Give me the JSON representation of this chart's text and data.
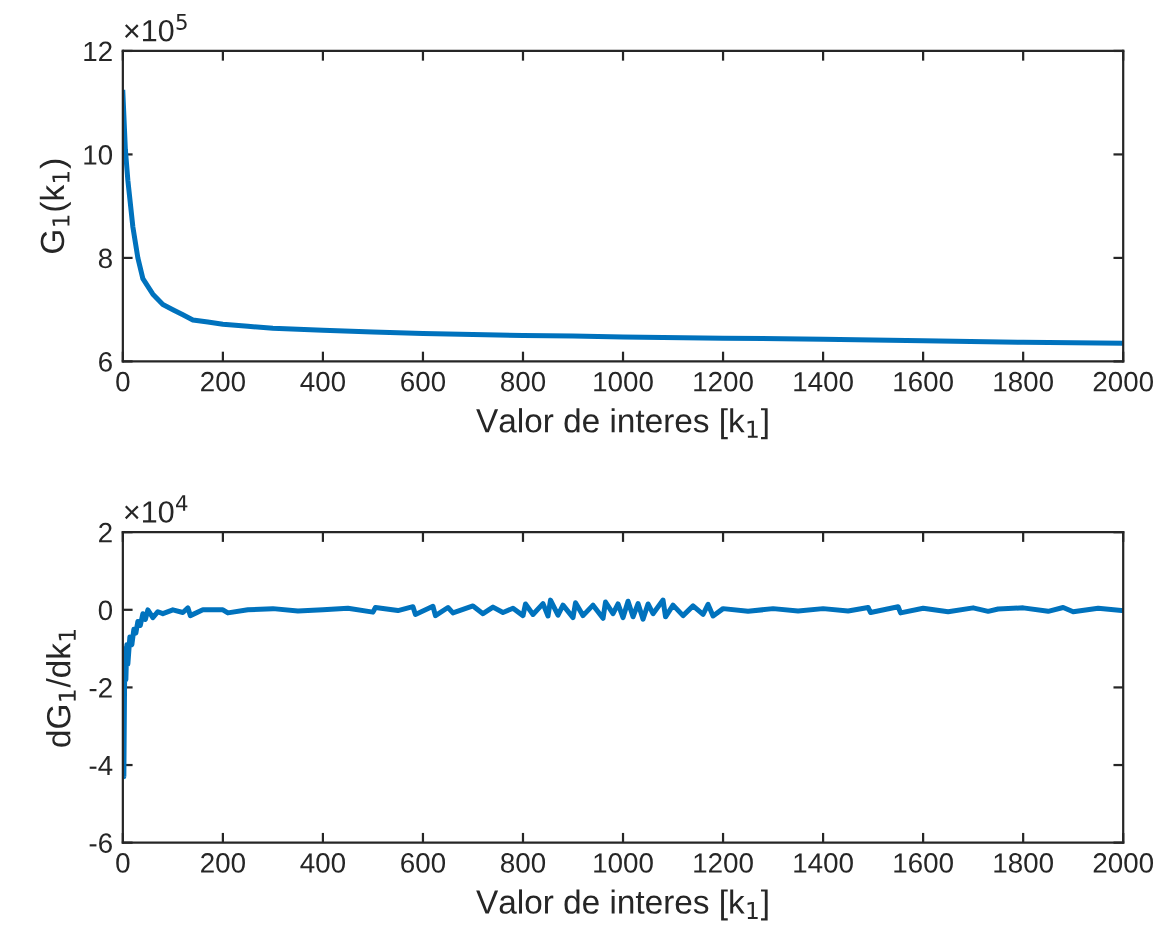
{
  "chart_data": [
    {
      "type": "line",
      "xlabel": "Valor de interes [k$_{1}$]",
      "ylabel": "G$_{1}$(k$_{1}$)",
      "annotations": [
        "×10$^{5}$"
      ],
      "xlim": [
        0,
        2000
      ],
      "xticks": [
        0,
        200,
        400,
        600,
        800,
        1000,
        1200,
        1400,
        1600,
        1800,
        2000
      ],
      "ylim": [
        6,
        12
      ],
      "yticks": [
        6,
        8,
        10,
        12
      ],
      "grid": false,
      "series": [
        {
          "color": "#0072bd",
          "x": [
            0,
            5,
            10,
            20,
            30,
            40,
            50,
            60,
            80,
            100,
            120,
            140,
            170,
            200,
            250,
            300,
            400,
            500,
            600,
            700,
            800,
            900,
            1000,
            1200,
            1400,
            1600,
            1800,
            2000
          ],
          "values": [
            11.2,
            10.1,
            9.5,
            8.6,
            8.0,
            7.6,
            7.45,
            7.3,
            7.1,
            7.0,
            6.9,
            6.8,
            6.76,
            6.72,
            6.68,
            6.64,
            6.6,
            6.57,
            6.54,
            6.52,
            6.5,
            6.49,
            6.47,
            6.45,
            6.43,
            6.4,
            6.37,
            6.35
          ]
        }
      ]
    },
    {
      "type": "line",
      "xlabel": "Valor de interes [k$_{1}$]",
      "ylabel": "dG$_{1}$/dk$_{1}$",
      "annotations": [
        "×10$^{4}$"
      ],
      "xlim": [
        0,
        2000
      ],
      "xticks": [
        0,
        200,
        400,
        600,
        800,
        1000,
        1200,
        1400,
        1600,
        1800,
        2000
      ],
      "ylim": [
        -6,
        2
      ],
      "yticks": [
        -6,
        -4,
        -2,
        0,
        2
      ],
      "grid": false,
      "series": [
        {
          "color": "#0072bd",
          "x": [
            0,
            2,
            4,
            6,
            8,
            10,
            14,
            18,
            22,
            26,
            30,
            35,
            40,
            45,
            50,
            60,
            70,
            80,
            100,
            120,
            130,
            135,
            160,
            200,
            210,
            250,
            300,
            350,
            400,
            450,
            500,
            505,
            550,
            580,
            585,
            620,
            625,
            650,
            660,
            700,
            720,
            740,
            760,
            780,
            800,
            805,
            820,
            840,
            850,
            855,
            870,
            880,
            900,
            905,
            920,
            940,
            960,
            965,
            980,
            990,
            1000,
            1010,
            1020,
            1030,
            1040,
            1050,
            1060,
            1080,
            1085,
            1100,
            1120,
            1140,
            1160,
            1170,
            1180,
            1200,
            1250,
            1300,
            1350,
            1400,
            1450,
            1490,
            1495,
            1550,
            1555,
            1600,
            1650,
            1700,
            1730,
            1750,
            1800,
            1850,
            1880,
            1900,
            1950,
            2000
          ],
          "values": [
            -3.5,
            -4.3,
            -1.0,
            -1.8,
            -0.9,
            -1.4,
            -0.7,
            -0.9,
            -0.5,
            -0.6,
            -0.3,
            -0.4,
            -0.1,
            -0.25,
            0,
            -0.2,
            -0.05,
            -0.1,
            0,
            -0.07,
            0.05,
            -0.15,
            0,
            0,
            -0.08,
            0,
            0.03,
            -0.03,
            0,
            0.04,
            -0.06,
            0.06,
            -0.02,
            0.08,
            -0.12,
            0.09,
            -0.15,
            0.06,
            -0.08,
            0.1,
            -0.1,
            0.07,
            -0.07,
            0.04,
            -0.15,
            0.15,
            -0.12,
            0.16,
            -0.16,
            0.25,
            -0.14,
            0.12,
            -0.2,
            0.18,
            -0.15,
            0.12,
            -0.22,
            0.2,
            -0.1,
            0.15,
            -0.2,
            0.22,
            -0.18,
            0.16,
            -0.24,
            0.15,
            -0.1,
            0.25,
            -0.18,
            0.12,
            -0.15,
            0.1,
            -0.12,
            0.14,
            -0.16,
            0.03,
            -0.04,
            0.03,
            -0.03,
            0.03,
            -0.03,
            0.06,
            -0.07,
            0.08,
            -0.08,
            0.04,
            -0.05,
            0.05,
            -0.04,
            0.02,
            0.05,
            -0.04,
            0.06,
            -0.05,
            0.04,
            -0.02
          ]
        }
      ]
    }
  ]
}
